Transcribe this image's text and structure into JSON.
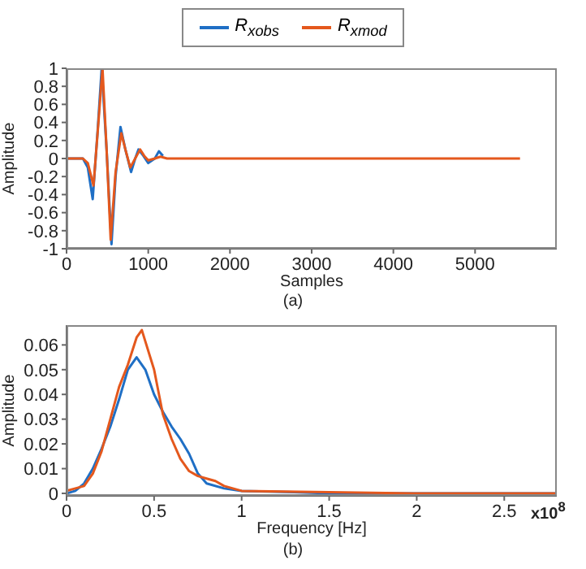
{
  "chart_data": [
    {
      "type": "line",
      "xlabel": "Samples",
      "ylabel": "Amplitude",
      "annotations": [
        "(a)"
      ],
      "legend": "top",
      "xlim": [
        0,
        6000
      ],
      "xticks": [
        0,
        1000,
        2000,
        3000,
        4000,
        5000
      ],
      "ylim": [
        -1,
        1
      ],
      "yticks": [
        -1,
        -0.8,
        -0.6,
        -0.4,
        -0.2,
        0,
        0.2,
        0.4,
        0.6,
        0.8,
        1
      ],
      "series": [
        {
          "name": "R$_{xobs}$",
          "color": "#1f6fc5",
          "x": [
            0,
            200,
            260,
            320,
            380,
            430,
            490,
            550,
            600,
            660,
            720,
            790,
            840,
            880,
            940,
            1000,
            1080,
            1130,
            1180
          ],
          "values": [
            0,
            0,
            -0.1,
            -0.45,
            0.3,
            1,
            0.1,
            -0.95,
            -0.2,
            0.35,
            0.1,
            -0.15,
            0,
            0.1,
            0.03,
            -0.05,
            0,
            0.08,
            0.03
          ]
        },
        {
          "name": "R$_{xmod}$",
          "color": "#e4581d",
          "x": [
            0,
            200,
            260,
            330,
            390,
            440,
            490,
            540,
            600,
            670,
            720,
            780,
            840,
            900,
            950,
            1000,
            1080,
            1150,
            1230,
            1400,
            2000,
            3000,
            4000,
            5000,
            5550
          ],
          "values": [
            0,
            0,
            -0.05,
            -0.3,
            0.4,
            1,
            0.1,
            -0.9,
            -0.15,
            0.28,
            0.1,
            -0.1,
            0,
            0.1,
            0.03,
            -0.02,
            0,
            0.02,
            0,
            0,
            0,
            0,
            0,
            0,
            0
          ]
        }
      ]
    },
    {
      "type": "line",
      "xlabel": "Frequency [Hz]",
      "ylabel": "Amplitude",
      "annotations": [
        "x10$^{8}$",
        "(b)"
      ],
      "xlim": [
        0,
        2.8
      ],
      "xticks": [
        0,
        0.5,
        1,
        1.5,
        2,
        2.5
      ],
      "ylim": [
        -0.001,
        0.068
      ],
      "yticks": [
        0,
        0.01,
        0.02,
        0.03,
        0.04,
        0.05,
        0.06
      ],
      "series": [
        {
          "color": "#1f6fc5",
          "x": [
            0,
            0.05,
            0.1,
            0.15,
            0.2,
            0.25,
            0.3,
            0.35,
            0.4,
            0.45,
            0.5,
            0.55,
            0.6,
            0.65,
            0.7,
            0.75,
            0.8,
            0.9,
            1,
            1.3,
            1.5,
            2,
            2.8
          ],
          "values": [
            0,
            0.001,
            0.004,
            0.01,
            0.018,
            0.027,
            0.038,
            0.05,
            0.055,
            0.05,
            0.04,
            0.033,
            0.027,
            0.022,
            0.016,
            0.008,
            0.004,
            0.002,
            0.001,
            0.0005,
            0,
            0,
            0
          ]
        },
        {
          "color": "#e4581d",
          "x": [
            0,
            0.05,
            0.1,
            0.15,
            0.2,
            0.25,
            0.3,
            0.35,
            0.4,
            0.43,
            0.5,
            0.55,
            0.6,
            0.65,
            0.7,
            0.75,
            0.8,
            0.85,
            0.9,
            1,
            1.5,
            2,
            2.8
          ],
          "values": [
            0.001,
            0.002,
            0.003,
            0.008,
            0.017,
            0.03,
            0.043,
            0.052,
            0.063,
            0.066,
            0.05,
            0.032,
            0.022,
            0.014,
            0.009,
            0.007,
            0.006,
            0.005,
            0.003,
            0.001,
            0.0005,
            0,
            0
          ]
        }
      ]
    }
  ]
}
